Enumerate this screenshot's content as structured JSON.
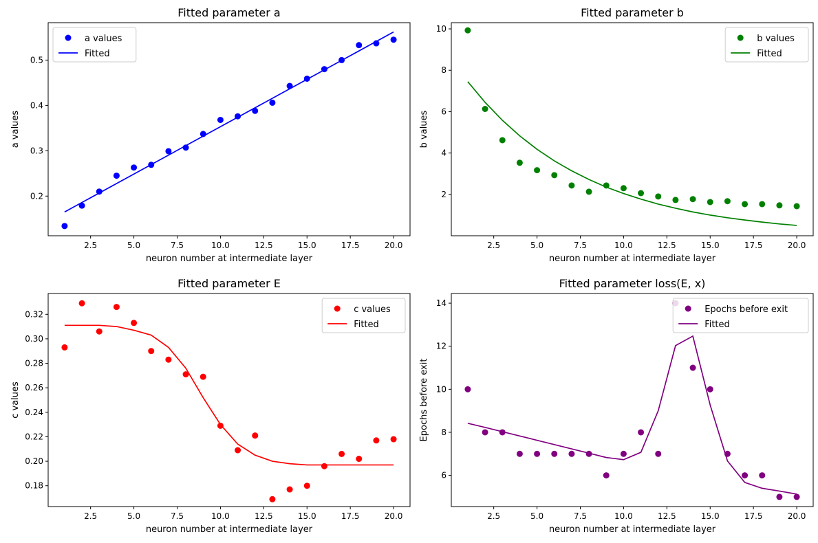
{
  "chart_data": [
    {
      "type": "scatter",
      "title": "Fitted parameter a",
      "xlabel": "neuron number at intermediate layer",
      "ylabel": "a values",
      "xlim": [
        0.05,
        20.95
      ],
      "ylim": [
        0.1125,
        0.5825
      ],
      "xticks": [
        "2.5",
        "5.0",
        "7.5",
        "10.0",
        "12.5",
        "15.0",
        "17.5",
        "20.0"
      ],
      "yticks": [
        "0.2",
        "0.3",
        "0.4",
        "0.5"
      ],
      "color": "#0000ff",
      "legend_position": "top-left",
      "series": [
        {
          "name": "a values",
          "kind": "scatter",
          "x": [
            1,
            2,
            3,
            4,
            5,
            6,
            7,
            8,
            9,
            10,
            11,
            12,
            13,
            14,
            15,
            16,
            17,
            18,
            19,
            20
          ],
          "y": [
            0.134,
            0.179,
            0.21,
            0.245,
            0.263,
            0.269,
            0.299,
            0.307,
            0.337,
            0.368,
            0.376,
            0.388,
            0.406,
            0.443,
            0.459,
            0.48,
            0.5,
            0.533,
            0.537,
            0.545
          ]
        },
        {
          "name": "Fitted",
          "kind": "line",
          "x": [
            1,
            20
          ],
          "y": [
            0.165,
            0.562
          ]
        }
      ]
    },
    {
      "type": "scatter",
      "title": "Fitted parameter b",
      "xlabel": "neuron number at intermediate layer",
      "ylabel": "b values",
      "xlim": [
        0.05,
        20.95
      ],
      "ylim": [
        0.0,
        10.3
      ],
      "xticks": [
        "2.5",
        "5.0",
        "7.5",
        "10.0",
        "12.5",
        "15.0",
        "17.5",
        "20.0"
      ],
      "yticks": [
        "2",
        "4",
        "6",
        "8",
        "10"
      ],
      "color": "#008000",
      "legend_position": "top-right",
      "series": [
        {
          "name": "b values",
          "kind": "scatter",
          "x": [
            1,
            2,
            3,
            4,
            5,
            6,
            7,
            8,
            9,
            10,
            11,
            12,
            13,
            14,
            15,
            16,
            17,
            18,
            19,
            20
          ],
          "y": [
            9.93,
            6.13,
            4.62,
            3.53,
            3.17,
            2.93,
            2.43,
            2.13,
            2.43,
            2.3,
            2.06,
            1.9,
            1.73,
            1.77,
            1.63,
            1.67,
            1.53,
            1.53,
            1.47,
            1.43
          ]
        },
        {
          "name": "Fitted",
          "kind": "line",
          "x": [
            1,
            2,
            3,
            4,
            5,
            6,
            7,
            8,
            9,
            10,
            11,
            12,
            13,
            14,
            15,
            16,
            17,
            18,
            19,
            20
          ],
          "y": [
            7.45,
            6.45,
            5.58,
            4.83,
            4.18,
            3.62,
            3.14,
            2.72,
            2.35,
            2.04,
            1.77,
            1.53,
            1.33,
            1.15,
            1.0,
            0.87,
            0.76,
            0.66,
            0.57,
            0.5
          ]
        }
      ]
    },
    {
      "type": "scatter",
      "title": "Fitted parameter E",
      "xlabel": "neuron number at intermediate layer",
      "ylabel": "c values",
      "xlim": [
        0.05,
        20.95
      ],
      "ylim": [
        0.163,
        0.337
      ],
      "xticks": [
        "2.5",
        "5.0",
        "7.5",
        "10.0",
        "12.5",
        "15.0",
        "17.5",
        "20.0"
      ],
      "yticks": [
        "0.18",
        "0.20",
        "0.22",
        "0.24",
        "0.26",
        "0.28",
        "0.30",
        "0.32"
      ],
      "color": "#ff0000",
      "legend_position": "top-right",
      "series": [
        {
          "name": "c values",
          "kind": "scatter",
          "x": [
            1,
            2,
            3,
            4,
            5,
            6,
            7,
            8,
            9,
            10,
            11,
            12,
            13,
            14,
            15,
            16,
            17,
            18,
            19,
            20
          ],
          "y": [
            0.293,
            0.329,
            0.306,
            0.326,
            0.313,
            0.29,
            0.283,
            0.271,
            0.269,
            0.229,
            0.209,
            0.221,
            0.169,
            0.177,
            0.18,
            0.196,
            0.206,
            0.202,
            0.217,
            0.218
          ]
        },
        {
          "name": "Fitted",
          "kind": "line",
          "x": [
            1,
            2,
            3,
            4,
            5,
            6,
            7,
            8,
            9,
            10,
            11,
            12,
            13,
            14,
            15,
            16,
            17,
            18,
            19,
            20
          ],
          "y": [
            0.311,
            0.311,
            0.311,
            0.31,
            0.307,
            0.303,
            0.293,
            0.276,
            0.252,
            0.23,
            0.214,
            0.205,
            0.2,
            0.198,
            0.197,
            0.197,
            0.197,
            0.197,
            0.197,
            0.197
          ]
        }
      ]
    },
    {
      "type": "scatter",
      "title": "Fitted parameter loss(E, x)",
      "xlabel": "neuron number at intermediate layer",
      "ylabel": "Epochs before exit",
      "xlim": [
        0.05,
        20.95
      ],
      "ylim": [
        4.55,
        14.45
      ],
      "xticks": [
        "2.5",
        "5.0",
        "7.5",
        "10.0",
        "12.5",
        "15.0",
        "17.5",
        "20.0"
      ],
      "yticks": [
        "6",
        "8",
        "10",
        "12",
        "14"
      ],
      "color": "#800080",
      "legend_position": "top-right",
      "series": [
        {
          "name": "Epochs before exit",
          "kind": "scatter",
          "x": [
            1,
            2,
            3,
            4,
            5,
            6,
            7,
            8,
            9,
            10,
            11,
            12,
            13,
            14,
            15,
            16,
            17,
            18,
            19,
            20
          ],
          "y": [
            10,
            8,
            8,
            7,
            7,
            7,
            7,
            7,
            6,
            7,
            8,
            7,
            14,
            11,
            10,
            7,
            6,
            6,
            5,
            5
          ]
        },
        {
          "name": "Fitted",
          "kind": "line",
          "x": [
            1,
            2,
            3,
            4,
            5,
            6,
            7,
            8,
            9,
            10,
            11,
            12,
            13,
            14,
            15,
            16,
            17,
            18,
            19,
            20
          ],
          "y": [
            8.42,
            8.23,
            8.03,
            7.83,
            7.63,
            7.43,
            7.23,
            7.03,
            6.83,
            6.73,
            7.07,
            9.0,
            12.03,
            12.47,
            9.27,
            6.67,
            5.67,
            5.4,
            5.27,
            5.13
          ]
        }
      ]
    }
  ]
}
